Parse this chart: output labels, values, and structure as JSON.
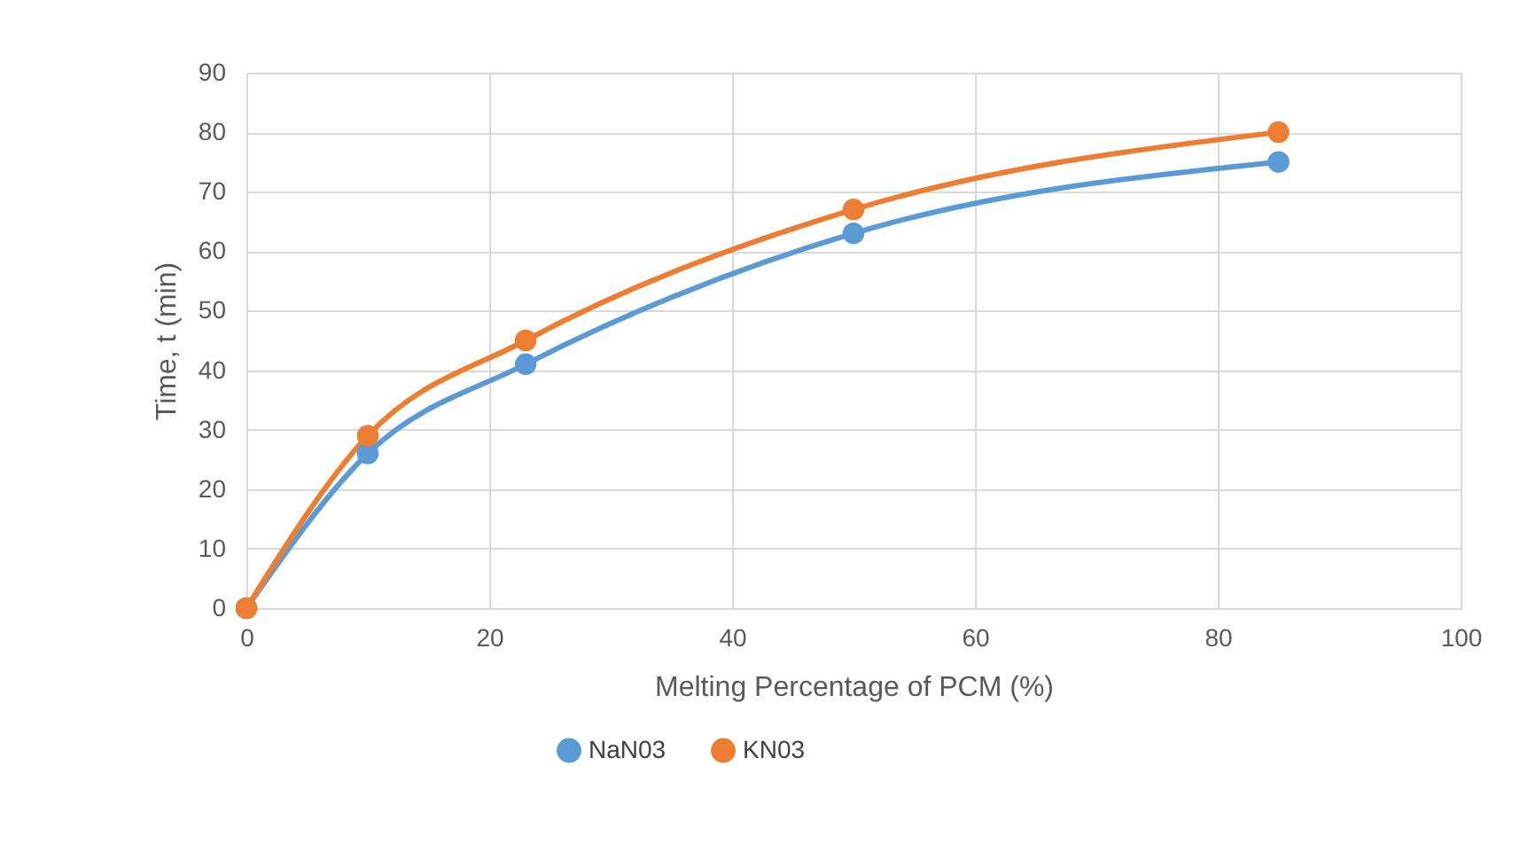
{
  "chart_data": {
    "type": "line",
    "xlabel": "Melting Percentage of PCM (%)",
    "ylabel": "Time, t (min)",
    "x": [
      0,
      10,
      23,
      50,
      85
    ],
    "series": [
      {
        "name": "NaN03",
        "color": "#5b9bd5",
        "values": [
          0,
          26,
          41,
          63,
          75
        ]
      },
      {
        "name": "KN03",
        "color": "#ed7d31",
        "values": [
          0,
          29,
          45,
          67,
          80
        ]
      }
    ],
    "xlim": [
      0,
      100
    ],
    "xticks": [
      0,
      20,
      40,
      60,
      80,
      100
    ],
    "ylim": [
      0,
      90
    ],
    "yticks": [
      0,
      10,
      20,
      30,
      40,
      50,
      60,
      70,
      80,
      90
    ],
    "grid": true,
    "legend": "bottom",
    "marker": "circle"
  }
}
